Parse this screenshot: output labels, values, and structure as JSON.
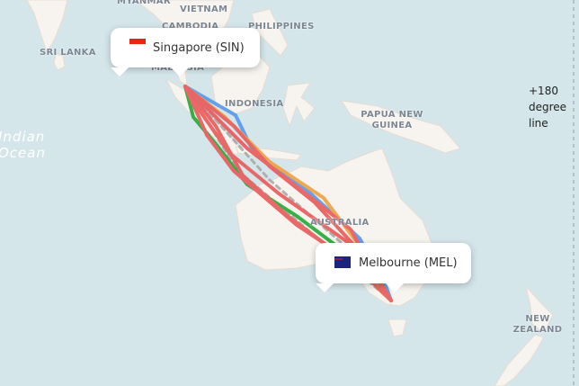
{
  "map_labels": {
    "myanmar": "MYANMAR",
    "vietnam": "VIETNAM",
    "cambodia": "CAMBODIA",
    "philippines": "PHILIPPINES",
    "sri_lanka": "SRI LANKA",
    "malaysia": "MALAYSIA",
    "indonesia": "INDONESIA",
    "png": "PAPUA NEW GUINEA",
    "australia": "AUSTRALIA",
    "nz": "NEW ZEALAND",
    "ocean": "Indian Ocean"
  },
  "origin": {
    "label": "Singapore (SIN)",
    "flag": "singapore-flag-icon"
  },
  "destination": {
    "label": "Melbourne (MEL)",
    "flag": "australia-flag-icon"
  },
  "dateline_label": "+180 degree line",
  "route_colors": [
    "#e85a5a",
    "#22aa33",
    "#5599ee",
    "#f0a040",
    "#aaaaaa"
  ]
}
